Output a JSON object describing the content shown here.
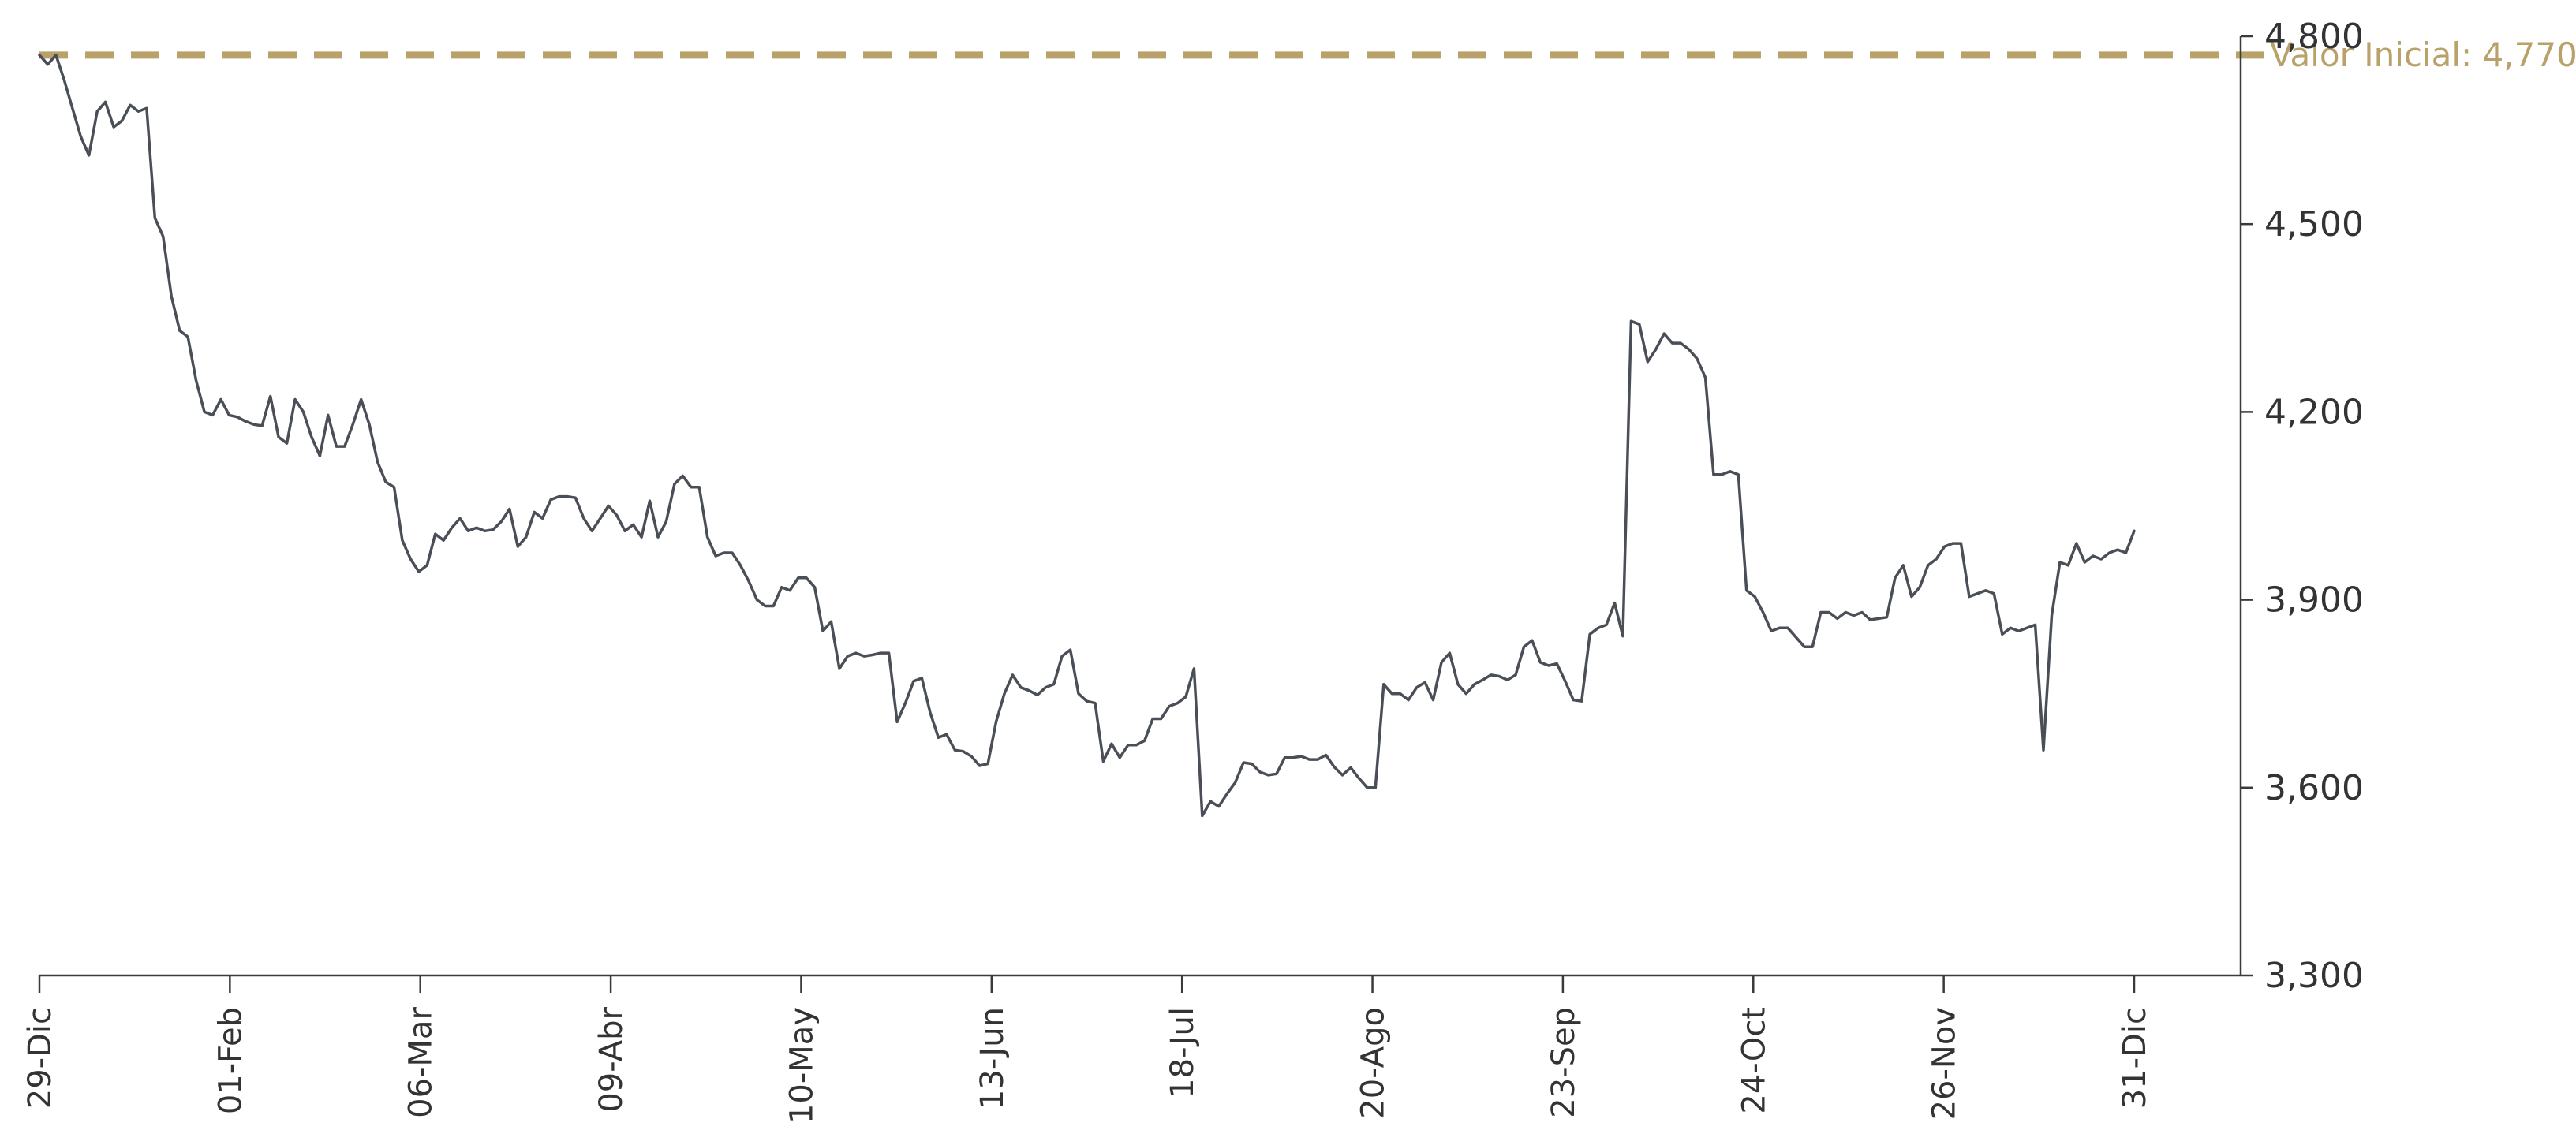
{
  "chart_data": {
    "type": "line",
    "title": "",
    "xlabel": "",
    "ylabel": "",
    "ylim": [
      3300,
      4800
    ],
    "y_ticks": [
      {
        "value": 3300,
        "label": "3,300"
      },
      {
        "value": 3600,
        "label": "3,600"
      },
      {
        "value": 3900,
        "label": "3,900"
      },
      {
        "value": 4200,
        "label": "4,200"
      },
      {
        "value": 4500,
        "label": "4,500"
      },
      {
        "value": 4800,
        "label": "4,800"
      }
    ],
    "x_tick_labels": [
      "29-Dic",
      "01-Feb",
      "06-Mar",
      "09-Abr",
      "10-May",
      "13-Jun",
      "18-Jul",
      "20-Ago",
      "23-Sep",
      "24-Oct",
      "26-Nov",
      "31-Dic"
    ],
    "y_axis_position": "right",
    "grid": false,
    "legend": "none",
    "series_color": "#4a4f57",
    "reference_line": {
      "label": "Valor Inicial: 4,770",
      "value": 4770,
      "style": "dashed",
      "color": "#b8a26a"
    },
    "series": [
      {
        "values": [
          4770,
          4755,
          4770,
          4730,
          4685,
          4640,
          4610,
          4680,
          4695,
          4655,
          4665,
          4690,
          4680,
          4685,
          4510,
          4480,
          4385,
          4330,
          4320,
          4250,
          4200,
          4195,
          4220,
          4195,
          4192,
          4185,
          4180,
          4178,
          4225,
          4160,
          4150,
          4220,
          4200,
          4160,
          4130,
          4195,
          4145,
          4145,
          4180,
          4220,
          4180,
          4120,
          4088,
          4080,
          3995,
          3965,
          3945,
          3955,
          4005,
          3995,
          4015,
          4030,
          4010,
          4015,
          4010,
          4012,
          4025,
          4045,
          3985,
          4000,
          4040,
          4030,
          4060,
          4065,
          4065,
          4063,
          4030,
          4010,
          4030,
          4050,
          4035,
          4010,
          4020,
          4000,
          4058,
          4000,
          4025,
          4085,
          4098,
          4080,
          4080,
          4000,
          3970,
          3975,
          3975,
          3955,
          3930,
          3900,
          3890,
          3890,
          3920,
          3915,
          3935,
          3935,
          3920,
          3850,
          3865,
          3790,
          3810,
          3815,
          3810,
          3812,
          3815,
          3815,
          3705,
          3735,
          3770,
          3775,
          3720,
          3680,
          3685,
          3660,
          3658,
          3650,
          3635,
          3638,
          3705,
          3750,
          3780,
          3760,
          3755,
          3748,
          3760,
          3765,
          3810,
          3820,
          3750,
          3738,
          3735,
          3642,
          3670,
          3648,
          3668,
          3668,
          3675,
          3710,
          3710,
          3730,
          3735,
          3745,
          3790,
          3555,
          3578,
          3570,
          3590,
          3608,
          3640,
          3638,
          3625,
          3620,
          3622,
          3648,
          3648,
          3650,
          3645,
          3645,
          3652,
          3633,
          3620,
          3632,
          3615,
          3600,
          3600,
          3765,
          3750,
          3750,
          3740,
          3760,
          3768,
          3740,
          3800,
          3815,
          3765,
          3750,
          3765,
          3772,
          3780,
          3778,
          3772,
          3780,
          3825,
          3835,
          3800,
          3795,
          3798,
          3770,
          3740,
          3738,
          3845,
          3855,
          3860,
          3895,
          3842,
          4345,
          4340,
          4280,
          4300,
          4325,
          4310,
          4310,
          4300,
          4285,
          4255,
          4100,
          4100,
          4105,
          4100,
          3915,
          3905,
          3880,
          3850,
          3855,
          3855,
          3840,
          3825,
          3825,
          3880,
          3880,
          3870,
          3880,
          3875,
          3880,
          3868,
          3870,
          3872,
          3935,
          3955,
          3905,
          3920,
          3955,
          3965,
          3985,
          3990,
          3990,
          3905,
          3910,
          3915,
          3910,
          3845,
          3855,
          3850,
          3855,
          3860,
          3660,
          3875,
          3960,
          3955,
          3990,
          3960,
          3970,
          3965,
          3975,
          3980,
          3975,
          4010
        ]
      }
    ]
  }
}
